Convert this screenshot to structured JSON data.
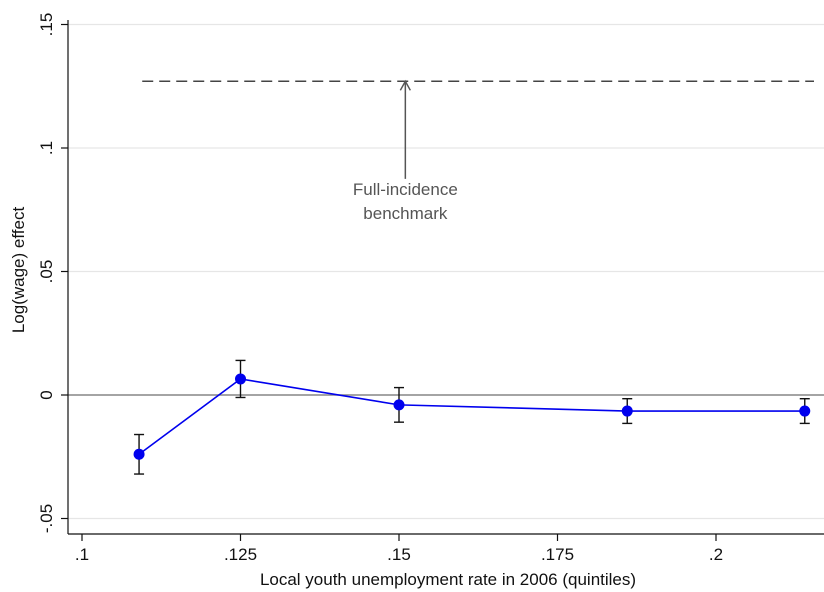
{
  "chart_data": {
    "type": "line",
    "title": "",
    "xlabel": "Local youth unemployment rate in 2006 (quintiles)",
    "ylabel": "Log(wage) effect",
    "xlim": [
      0.1,
      0.215
    ],
    "ylim": [
      -0.05,
      0.15
    ],
    "x_ticks": [
      {
        "value": 0.1,
        "label": ".1"
      },
      {
        "value": 0.125,
        "label": ".125"
      },
      {
        "value": 0.15,
        "label": ".15"
      },
      {
        "value": 0.175,
        "label": ".175"
      },
      {
        "value": 0.2,
        "label": ".2"
      }
    ],
    "y_ticks": [
      {
        "value": -0.05,
        "label": "-.05"
      },
      {
        "value": 0,
        "label": "0"
      },
      {
        "value": 0.05,
        "label": ".05"
      },
      {
        "value": 0.1,
        "label": ".1"
      },
      {
        "value": 0.15,
        "label": ".15"
      }
    ],
    "grid": true,
    "series": [
      {
        "color": "#0000ee",
        "points": [
          {
            "x": 0.109,
            "y": -0.024,
            "lo": -0.032,
            "hi": -0.016
          },
          {
            "x": 0.125,
            "y": 0.0065,
            "lo": -0.001,
            "hi": 0.014
          },
          {
            "x": 0.15,
            "y": -0.004,
            "lo": -0.011,
            "hi": 0.003
          },
          {
            "x": 0.186,
            "y": -0.0065,
            "lo": -0.0115,
            "hi": -0.0015
          },
          {
            "x": 0.214,
            "y": -0.0065,
            "lo": -0.0115,
            "hi": -0.0015
          }
        ]
      }
    ],
    "reference_lines": [
      {
        "y": 0,
        "style": "solid",
        "color": "#888888"
      },
      {
        "y": 0.127,
        "style": "dashed",
        "color": "#444444",
        "x_from": 0.1095,
        "x_to": 0.216
      }
    ],
    "annotation": {
      "lines": [
        "Full-incidence",
        "benchmark"
      ],
      "x": 0.151,
      "y_text": 0.081,
      "arrow_from_y": 0.0875,
      "arrow_to_y": 0.127,
      "color": "#555555"
    }
  }
}
